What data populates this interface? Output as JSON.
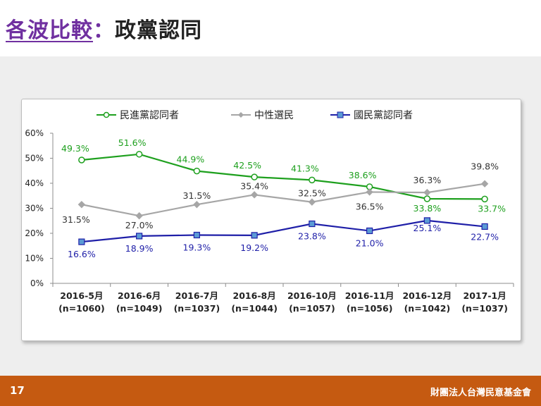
{
  "page": {
    "title_main": "各波比較",
    "title_colon": "：",
    "title_sub": "政黨認同",
    "page_number": "17",
    "organization": "財團法人台灣民意基金會"
  },
  "chart_data": {
    "type": "line",
    "categories": [
      "2016-5月",
      "2016-6月",
      "2016-7月",
      "2016-8月",
      "2016-10月",
      "2016-11月",
      "2016-12月",
      "2017-1月"
    ],
    "category_sublabels": [
      "(n=1060)",
      "(n=1049)",
      "(n=1037)",
      "(n=1044)",
      "(n=1057)",
      "(n=1056)",
      "(n=1042)",
      "(n=1037)"
    ],
    "ylim": [
      0,
      60
    ],
    "yticks": [
      "0%",
      "10%",
      "20%",
      "30%",
      "40%",
      "50%",
      "60%"
    ],
    "legend_position": "top",
    "series": [
      {
        "name": "民進黨認同者",
        "color": "#1ea01e",
        "marker": "circle",
        "values": [
          49.3,
          51.6,
          44.9,
          42.5,
          41.3,
          38.6,
          33.8,
          33.7
        ],
        "labels": [
          "49.3%",
          "51.6%",
          "44.9%",
          "42.5%",
          "41.3%",
          "38.6%",
          "33.8%",
          "33.7%"
        ]
      },
      {
        "name": "中性選民",
        "color": "#a6a6a6",
        "marker": "diamond",
        "values": [
          31.5,
          27.0,
          31.5,
          35.4,
          32.5,
          36.5,
          36.3,
          39.8
        ],
        "labels": [
          "31.5%",
          "27.0%",
          "31.5%",
          "35.4%",
          "32.5%",
          "36.5%",
          "36.3%",
          "39.8%"
        ]
      },
      {
        "name": "國民黨認同者",
        "color": "#1f1fa8",
        "marker": "square",
        "values": [
          16.6,
          18.9,
          19.3,
          19.2,
          23.8,
          21.0,
          25.1,
          22.7
        ],
        "labels": [
          "16.6%",
          "18.9%",
          "19.3%",
          "19.2%",
          "23.8%",
          "21.0%",
          "25.1%",
          "22.7%"
        ]
      }
    ]
  }
}
